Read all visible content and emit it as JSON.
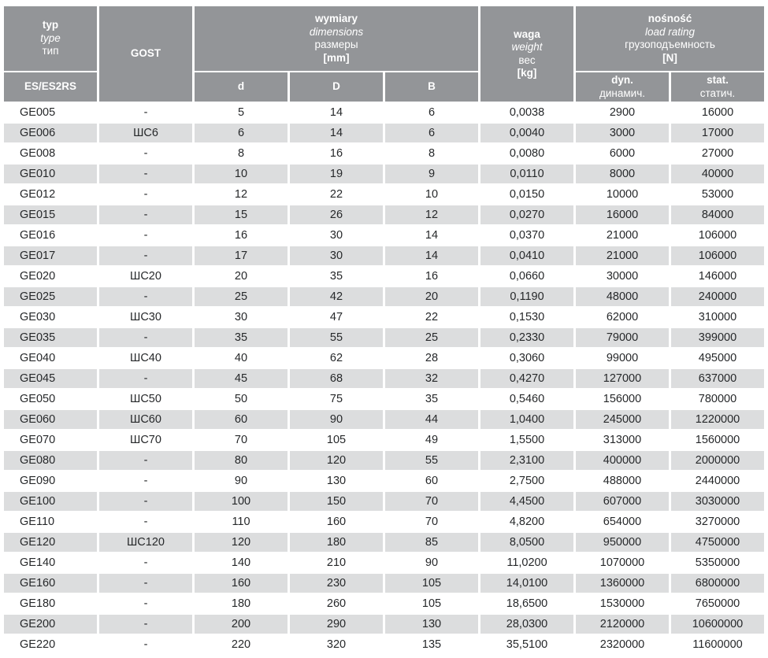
{
  "colors": {
    "header_bg": "#939598",
    "stripe_bg": "#dcddde",
    "header_text": "#ffffff",
    "data_text": "#26282a"
  },
  "table": {
    "header": {
      "type_col": {
        "l1": "typ",
        "l2": "type",
        "l3": "тип",
        "sub": "ES/ES2RS"
      },
      "gost": "GOST",
      "dimensions": {
        "l1": "wymiary",
        "l2": "dimensions",
        "l3": "размеры",
        "l4": "[mm]",
        "sub_d": "d",
        "sub_D": "D",
        "sub_B": "B"
      },
      "weight": {
        "l1": "waga",
        "l2": "weight",
        "l3": "вес",
        "l4": "[kg]"
      },
      "load": {
        "l1": "nośność",
        "l2": "load rating",
        "l3": "грузоподъемность",
        "l4": "[N]",
        "dyn_l1": "dyn.",
        "dyn_l2": "динамич.",
        "stat_l1": "stat.",
        "stat_l2": "статич."
      }
    },
    "rows": [
      {
        "type": "GE005",
        "gost": "-",
        "d": "5",
        "D": "14",
        "B": "6",
        "weight": "0,0038",
        "dyn": "2900",
        "stat": "16000"
      },
      {
        "type": "GE006",
        "gost": "ШС6",
        "d": "6",
        "D": "14",
        "B": "6",
        "weight": "0,0040",
        "dyn": "3000",
        "stat": "17000"
      },
      {
        "type": "GE008",
        "gost": "-",
        "d": "8",
        "D": "16",
        "B": "8",
        "weight": "0,0080",
        "dyn": "6000",
        "stat": "27000"
      },
      {
        "type": "GE010",
        "gost": "-",
        "d": "10",
        "D": "19",
        "B": "9",
        "weight": "0,0110",
        "dyn": "8000",
        "stat": "40000"
      },
      {
        "type": "GE012",
        "gost": "-",
        "d": "12",
        "D": "22",
        "B": "10",
        "weight": "0,0150",
        "dyn": "10000",
        "stat": "53000"
      },
      {
        "type": "GE015",
        "gost": "-",
        "d": "15",
        "D": "26",
        "B": "12",
        "weight": "0,0270",
        "dyn": "16000",
        "stat": "84000"
      },
      {
        "type": "GE016",
        "gost": "-",
        "d": "16",
        "D": "30",
        "B": "14",
        "weight": "0,0370",
        "dyn": "21000",
        "stat": "106000"
      },
      {
        "type": "GE017",
        "gost": "-",
        "d": "17",
        "D": "30",
        "B": "14",
        "weight": "0,0410",
        "dyn": "21000",
        "stat": "106000"
      },
      {
        "type": "GE020",
        "gost": "ШС20",
        "d": "20",
        "D": "35",
        "B": "16",
        "weight": "0,0660",
        "dyn": "30000",
        "stat": "146000"
      },
      {
        "type": "GE025",
        "gost": "-",
        "d": "25",
        "D": "42",
        "B": "20",
        "weight": "0,1190",
        "dyn": "48000",
        "stat": "240000"
      },
      {
        "type": "GE030",
        "gost": "ШС30",
        "d": "30",
        "D": "47",
        "B": "22",
        "weight": "0,1530",
        "dyn": "62000",
        "stat": "310000"
      },
      {
        "type": "GE035",
        "gost": "-",
        "d": "35",
        "D": "55",
        "B": "25",
        "weight": "0,2330",
        "dyn": "79000",
        "stat": "399000"
      },
      {
        "type": "GE040",
        "gost": "ШС40",
        "d": "40",
        "D": "62",
        "B": "28",
        "weight": "0,3060",
        "dyn": "99000",
        "stat": "495000"
      },
      {
        "type": "GE045",
        "gost": "-",
        "d": "45",
        "D": "68",
        "B": "32",
        "weight": "0,4270",
        "dyn": "127000",
        "stat": "637000"
      },
      {
        "type": "GE050",
        "gost": "ШС50",
        "d": "50",
        "D": "75",
        "B": "35",
        "weight": "0,5460",
        "dyn": "156000",
        "stat": "780000"
      },
      {
        "type": "GE060",
        "gost": "ШС60",
        "d": "60",
        "D": "90",
        "B": "44",
        "weight": "1,0400",
        "dyn": "245000",
        "stat": "1220000"
      },
      {
        "type": "GE070",
        "gost": "ШС70",
        "d": "70",
        "D": "105",
        "B": "49",
        "weight": "1,5500",
        "dyn": "313000",
        "stat": "1560000"
      },
      {
        "type": "GE080",
        "gost": "-",
        "d": "80",
        "D": "120",
        "B": "55",
        "weight": "2,3100",
        "dyn": "400000",
        "stat": "2000000"
      },
      {
        "type": "GE090",
        "gost": "-",
        "d": "90",
        "D": "130",
        "B": "60",
        "weight": "2,7500",
        "dyn": "488000",
        "stat": "2440000"
      },
      {
        "type": "GE100",
        "gost": "-",
        "d": "100",
        "D": "150",
        "B": "70",
        "weight": "4,4500",
        "dyn": "607000",
        "stat": "3030000"
      },
      {
        "type": "GE110",
        "gost": "-",
        "d": "110",
        "D": "160",
        "B": "70",
        "weight": "4,8200",
        "dyn": "654000",
        "stat": "3270000"
      },
      {
        "type": "GE120",
        "gost": "ШС120",
        "d": "120",
        "D": "180",
        "B": "85",
        "weight": "8,0500",
        "dyn": "950000",
        "stat": "4750000"
      },
      {
        "type": "GE140",
        "gost": "-",
        "d": "140",
        "D": "210",
        "B": "90",
        "weight": "11,0200",
        "dyn": "1070000",
        "stat": "5350000"
      },
      {
        "type": "GE160",
        "gost": "-",
        "d": "160",
        "D": "230",
        "B": "105",
        "weight": "14,0100",
        "dyn": "1360000",
        "stat": "6800000"
      },
      {
        "type": "GE180",
        "gost": "-",
        "d": "180",
        "D": "260",
        "B": "105",
        "weight": "18,6500",
        "dyn": "1530000",
        "stat": "7650000"
      },
      {
        "type": "GE200",
        "gost": "-",
        "d": "200",
        "D": "290",
        "B": "130",
        "weight": "28,0300",
        "dyn": "2120000",
        "stat": "10600000"
      },
      {
        "type": "GE220",
        "gost": "-",
        "d": "220",
        "D": "320",
        "B": "135",
        "weight": "35,5100",
        "dyn": "2320000",
        "stat": "11600000"
      }
    ]
  }
}
